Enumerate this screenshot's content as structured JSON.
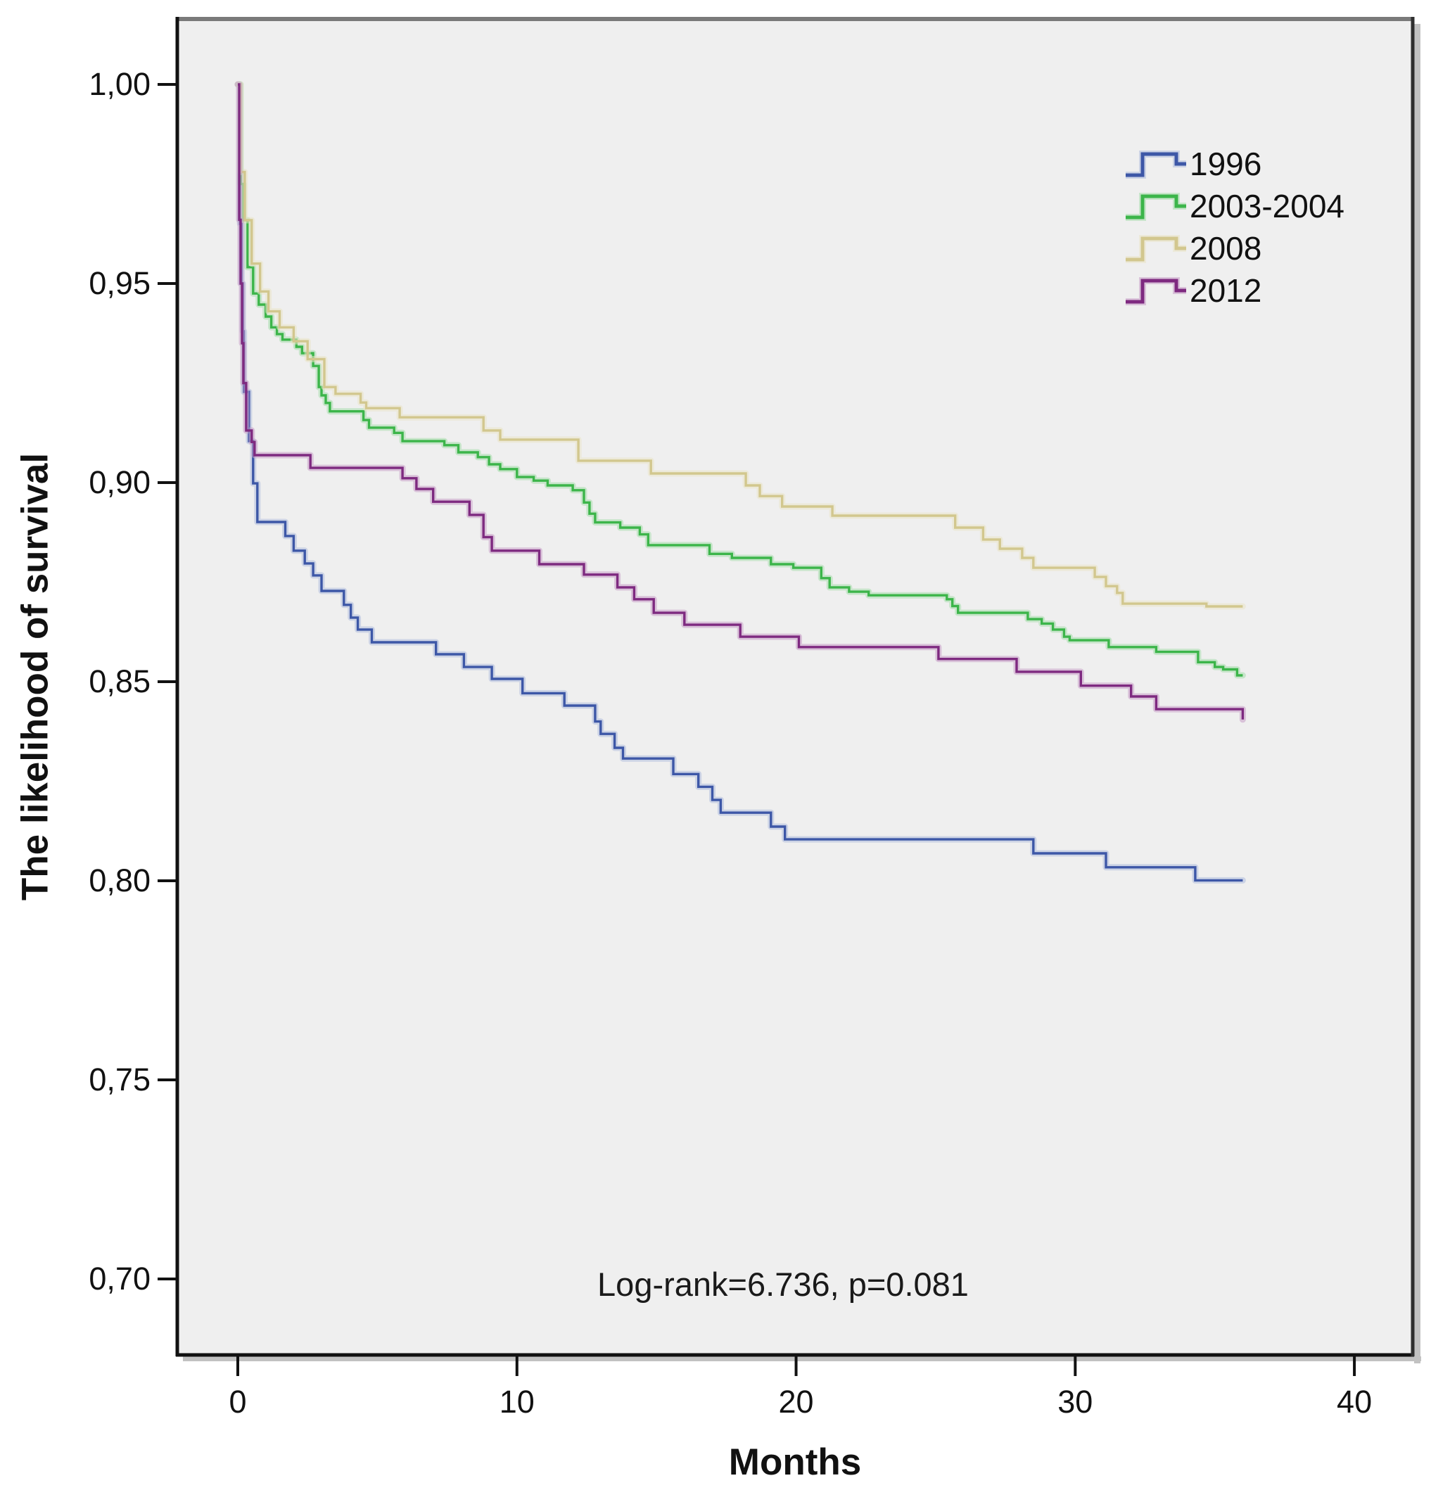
{
  "figure": {
    "background": "#ffffff",
    "plot_background": "#efefef",
    "frame_top_color": "#7a7a7a",
    "frame_side_color": "#2f2f2f",
    "frame_shadow_color": "#c2c2c2",
    "tick_color": "#111111"
  },
  "chart_data": {
    "type": "line",
    "subtype": "kaplan-meier-step-survival",
    "title": "",
    "xlabel": "Months",
    "ylabel": "The likelihood of survival",
    "annotation": "Log-rank=6.736, p=0.081",
    "grid": false,
    "legend_position": "upper-right",
    "x_range": [
      -2.218,
      42.14
    ],
    "y_range": [
      0.68057,
      1.01696
    ],
    "x_ticks": [
      {
        "v": 0,
        "label": "0"
      },
      {
        "v": 10,
        "label": "10"
      },
      {
        "v": 20,
        "label": "20"
      },
      {
        "v": 30,
        "label": "30"
      },
      {
        "v": 40,
        "label": "40"
      }
    ],
    "y_ticks": [
      {
        "v": 1.0,
        "label": "1,00"
      },
      {
        "v": 0.95,
        "label": "0,95"
      },
      {
        "v": 0.9,
        "label": "0,90"
      },
      {
        "v": 0.85,
        "label": "0,85"
      },
      {
        "v": 0.8,
        "label": "0,80"
      },
      {
        "v": 0.75,
        "label": "0,75"
      },
      {
        "v": 0.7,
        "label": "0,70"
      }
    ],
    "series": [
      {
        "name": "1996",
        "color": "#3d57a7",
        "halo": "#aebbdd",
        "points": [
          [
            0,
            1.0
          ],
          [
            0.08,
            0.965
          ],
          [
            0.13,
            0.95
          ],
          [
            0.18,
            0.938
          ],
          [
            0.22,
            0.9228
          ],
          [
            0.4,
            0.9104
          ],
          [
            0.55,
            0.8998
          ],
          [
            0.7,
            0.8901
          ],
          [
            1.7,
            0.8866
          ],
          [
            2.0,
            0.8829
          ],
          [
            2.4,
            0.8797
          ],
          [
            2.7,
            0.8767
          ],
          [
            3.0,
            0.8728
          ],
          [
            3.8,
            0.8693
          ],
          [
            4.05,
            0.8661
          ],
          [
            4.3,
            0.8631
          ],
          [
            4.8,
            0.8599
          ],
          [
            7.1,
            0.8569
          ],
          [
            8.1,
            0.8537
          ],
          [
            9.1,
            0.8507
          ],
          [
            10.2,
            0.8471
          ],
          [
            11.7,
            0.844
          ],
          [
            12.8,
            0.84
          ],
          [
            13.0,
            0.8369
          ],
          [
            13.5,
            0.8334
          ],
          [
            13.8,
            0.8307
          ],
          [
            15.6,
            0.8268
          ],
          [
            16.5,
            0.8236
          ],
          [
            17.0,
            0.8203
          ],
          [
            17.3,
            0.8171
          ],
          [
            19.1,
            0.8136
          ],
          [
            19.6,
            0.8104
          ],
          [
            28.5,
            0.8069
          ],
          [
            31.1,
            0.8034
          ],
          [
            34.3,
            0.8001
          ],
          [
            36.0,
            0.8001
          ]
        ]
      },
      {
        "name": "2003-2004",
        "color": "#3cb54a",
        "halo": "#a6dcab",
        "points": [
          [
            0,
            1.0
          ],
          [
            0.1,
            0.975
          ],
          [
            0.2,
            0.9659
          ],
          [
            0.35,
            0.9541
          ],
          [
            0.55,
            0.9475
          ],
          [
            0.75,
            0.9447
          ],
          [
            1.0,
            0.9417
          ],
          [
            1.2,
            0.939
          ],
          [
            1.4,
            0.9373
          ],
          [
            1.6,
            0.9359
          ],
          [
            2.1,
            0.9341
          ],
          [
            2.3,
            0.9325
          ],
          [
            2.7,
            0.9293
          ],
          [
            2.9,
            0.924
          ],
          [
            3.0,
            0.9219
          ],
          [
            3.15,
            0.92
          ],
          [
            3.3,
            0.9179
          ],
          [
            4.5,
            0.9157
          ],
          [
            4.7,
            0.9138
          ],
          [
            5.6,
            0.9125
          ],
          [
            5.9,
            0.9104
          ],
          [
            7.4,
            0.9094
          ],
          [
            7.9,
            0.9076
          ],
          [
            8.6,
            0.9064
          ],
          [
            9.0,
            0.9046
          ],
          [
            9.4,
            0.9034
          ],
          [
            10.0,
            0.9014
          ],
          [
            10.6,
            0.9005
          ],
          [
            11.1,
            0.8993
          ],
          [
            12.0,
            0.8981
          ],
          [
            12.4,
            0.895
          ],
          [
            12.6,
            0.8922
          ],
          [
            12.8,
            0.89
          ],
          [
            13.7,
            0.8887
          ],
          [
            14.4,
            0.887
          ],
          [
            14.7,
            0.8843
          ],
          [
            16.9,
            0.8821
          ],
          [
            17.7,
            0.8811
          ],
          [
            19.1,
            0.8795
          ],
          [
            19.9,
            0.8786
          ],
          [
            20.9,
            0.876
          ],
          [
            21.2,
            0.8737
          ],
          [
            21.9,
            0.8726
          ],
          [
            22.6,
            0.8717
          ],
          [
            25.4,
            0.8707
          ],
          [
            25.6,
            0.869
          ],
          [
            25.8,
            0.8673
          ],
          [
            28.3,
            0.8657
          ],
          [
            28.8,
            0.8646
          ],
          [
            29.2,
            0.8631
          ],
          [
            29.6,
            0.8613
          ],
          [
            29.8,
            0.8604
          ],
          [
            31.2,
            0.8587
          ],
          [
            32.9,
            0.8575
          ],
          [
            34.4,
            0.8549
          ],
          [
            35.0,
            0.8537
          ],
          [
            35.3,
            0.8531
          ],
          [
            35.8,
            0.8516
          ],
          [
            36.0,
            0.8516
          ]
        ]
      },
      {
        "name": "2008",
        "color": "#d2c78e",
        "halo": "#eae4c6",
        "points": [
          [
            0,
            1.0
          ],
          [
            0.1,
            0.978
          ],
          [
            0.25,
            0.9659
          ],
          [
            0.5,
            0.955
          ],
          [
            0.8,
            0.948
          ],
          [
            1.1,
            0.943
          ],
          [
            1.5,
            0.939
          ],
          [
            2.0,
            0.9355
          ],
          [
            2.5,
            0.931
          ],
          [
            3.1,
            0.924
          ],
          [
            3.5,
            0.9223
          ],
          [
            4.4,
            0.9201
          ],
          [
            4.6,
            0.9187
          ],
          [
            5.8,
            0.9164
          ],
          [
            8.8,
            0.9131
          ],
          [
            9.4,
            0.9108
          ],
          [
            12.2,
            0.9055
          ],
          [
            14.8,
            0.9023
          ],
          [
            18.2,
            0.8993
          ],
          [
            18.7,
            0.8966
          ],
          [
            19.5,
            0.894
          ],
          [
            21.3,
            0.8917
          ],
          [
            25.7,
            0.8887
          ],
          [
            26.7,
            0.8857
          ],
          [
            27.3,
            0.8834
          ],
          [
            28.1,
            0.8811
          ],
          [
            28.5,
            0.8786
          ],
          [
            30.7,
            0.8763
          ],
          [
            31.1,
            0.874
          ],
          [
            31.5,
            0.8723
          ],
          [
            31.7,
            0.8696
          ],
          [
            34.7,
            0.8689
          ],
          [
            36.0,
            0.8689
          ]
        ]
      },
      {
        "name": "2012",
        "color": "#7e2a80",
        "halo": "#c69dc7",
        "points": [
          [
            0,
            1.0
          ],
          [
            0.05,
            0.966
          ],
          [
            0.1,
            0.95
          ],
          [
            0.15,
            0.935
          ],
          [
            0.2,
            0.925
          ],
          [
            0.3,
            0.9131
          ],
          [
            0.5,
            0.9102
          ],
          [
            0.6,
            0.9069
          ],
          [
            2.6,
            0.9037
          ],
          [
            5.9,
            0.9011
          ],
          [
            6.4,
            0.8984
          ],
          [
            7.0,
            0.8952
          ],
          [
            8.3,
            0.8919
          ],
          [
            8.8,
            0.8863
          ],
          [
            9.1,
            0.8829
          ],
          [
            10.8,
            0.8795
          ],
          [
            12.4,
            0.8769
          ],
          [
            13.6,
            0.8737
          ],
          [
            14.2,
            0.8707
          ],
          [
            14.9,
            0.8673
          ],
          [
            16.0,
            0.8643
          ],
          [
            18.0,
            0.8613
          ],
          [
            20.1,
            0.8587
          ],
          [
            25.1,
            0.8557
          ],
          [
            27.9,
            0.8525
          ],
          [
            30.2,
            0.849
          ],
          [
            32.0,
            0.8463
          ],
          [
            32.9,
            0.8431
          ],
          [
            35.9,
            0.8431
          ],
          [
            36.0,
            0.8405
          ]
        ]
      }
    ]
  }
}
